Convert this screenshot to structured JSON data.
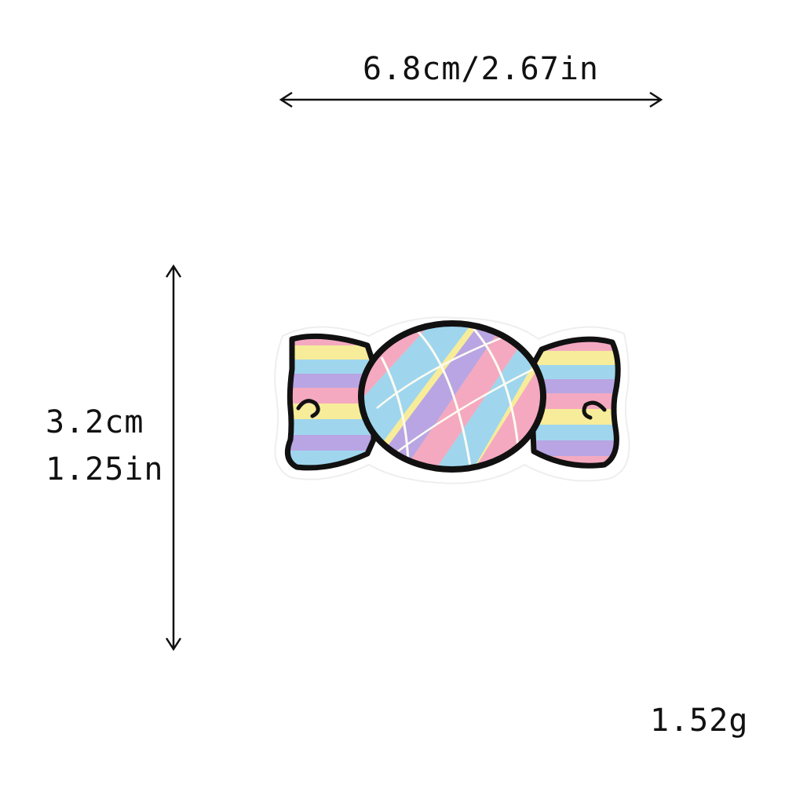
{
  "dimensions": {
    "width_label": "6.8cm/2.67in",
    "height_cm_label": "3.2cm",
    "height_in_label": "1.25in",
    "weight_label": "1.52g"
  },
  "product": {
    "icon": "candy-patch-icon",
    "colors": {
      "outline": "#111111",
      "border": "#ffffff",
      "pink": "#f4a9c0",
      "yellow": "#f7ec9a",
      "blue": "#9fd6ee",
      "purple": "#b9a5e3",
      "stitch": "#fdfbf2"
    }
  }
}
